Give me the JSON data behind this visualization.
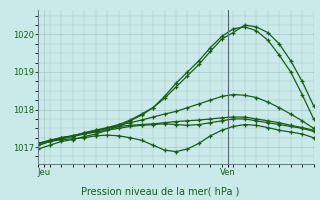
{
  "title": "Pression niveau de la mer( hPa )",
  "bg_color": "#caeaea",
  "grid_color": "#a8c8c8",
  "line_color": "#1a5c1a",
  "ylim": [
    1016.55,
    1020.65
  ],
  "y_ticks": [
    1017,
    1018,
    1019,
    1020
  ],
  "xlim": [
    0,
    24
  ],
  "x_tick_pos": [
    0.5,
    16.5
  ],
  "x_tick_labels": [
    "Jeu",
    "Ven"
  ],
  "vline_x": 16.5,
  "n_points": 25,
  "series": [
    [
      1016.95,
      1017.05,
      1017.15,
      1017.2,
      1017.28,
      1017.35,
      1017.45,
      1017.55,
      1017.7,
      1017.85,
      1018.05,
      1018.35,
      1018.7,
      1019.0,
      1019.3,
      1019.65,
      1019.95,
      1020.15,
      1020.2,
      1020.1,
      1019.85,
      1019.45,
      1019.0,
      1018.4,
      1017.75
    ],
    [
      1017.05,
      1017.15,
      1017.25,
      1017.3,
      1017.38,
      1017.45,
      1017.52,
      1017.6,
      1017.72,
      1017.88,
      1018.05,
      1018.3,
      1018.6,
      1018.9,
      1019.2,
      1019.55,
      1019.88,
      1020.05,
      1020.25,
      1020.2,
      1020.05,
      1019.75,
      1019.3,
      1018.75,
      1018.1
    ],
    [
      1017.1,
      1017.18,
      1017.25,
      1017.3,
      1017.35,
      1017.4,
      1017.45,
      1017.5,
      1017.55,
      1017.58,
      1017.6,
      1017.62,
      1017.6,
      1017.58,
      1017.6,
      1017.65,
      1017.7,
      1017.75,
      1017.75,
      1017.7,
      1017.65,
      1017.6,
      1017.55,
      1017.5,
      1017.42
    ],
    [
      1017.1,
      1017.15,
      1017.2,
      1017.22,
      1017.25,
      1017.3,
      1017.32,
      1017.3,
      1017.25,
      1017.18,
      1017.05,
      1016.92,
      1016.88,
      1016.95,
      1017.1,
      1017.3,
      1017.45,
      1017.55,
      1017.6,
      1017.58,
      1017.52,
      1017.45,
      1017.4,
      1017.35,
      1017.25
    ],
    [
      1017.1,
      1017.18,
      1017.25,
      1017.3,
      1017.38,
      1017.45,
      1017.5,
      1017.55,
      1017.58,
      1017.6,
      1017.62,
      1017.65,
      1017.68,
      1017.7,
      1017.72,
      1017.75,
      1017.78,
      1017.8,
      1017.8,
      1017.75,
      1017.7,
      1017.65,
      1017.58,
      1017.52,
      1017.45
    ],
    [
      1017.05,
      1017.15,
      1017.22,
      1017.28,
      1017.35,
      1017.42,
      1017.5,
      1017.58,
      1017.65,
      1017.72,
      1017.8,
      1017.88,
      1017.95,
      1018.05,
      1018.15,
      1018.25,
      1018.35,
      1018.4,
      1018.38,
      1018.32,
      1018.2,
      1018.05,
      1017.88,
      1017.7,
      1017.5
    ]
  ]
}
